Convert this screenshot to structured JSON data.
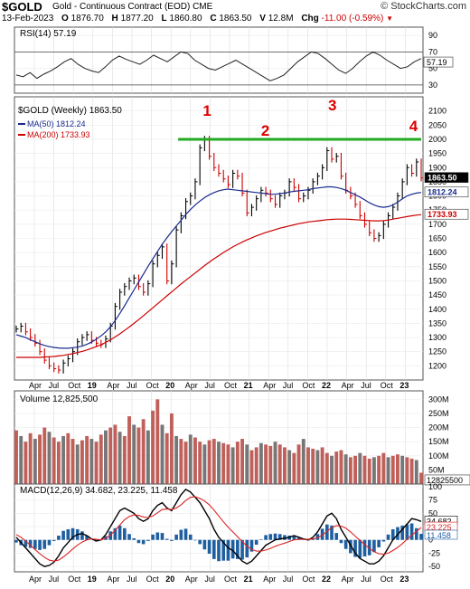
{
  "header": {
    "symbol": "$GOLD",
    "description": "Gold - Continuous Contract (EOD)",
    "exchange": "CME",
    "brand": "© StockCharts.com",
    "date": "13-Feb-2023",
    "open_label": "O",
    "open": "1876.70",
    "high_label": "H",
    "high": "1877.20",
    "low_label": "L",
    "low": "1860.80",
    "close_label": "C",
    "close": "1863.50",
    "volume_label": "V",
    "volume": "12.8M",
    "change_label": "Chg",
    "change": "-11.00 (-0.59%)",
    "change_icon": "down-triangle-icon"
  },
  "colors": {
    "up": "#000000",
    "down": "#cc0000",
    "ma50": "#1a2b8c",
    "ma200": "#cc0000",
    "rsi_fill": "#2e7d32",
    "resistance": "#22aa22",
    "annotation": "#dd0000",
    "vol_bar": "#c0605a",
    "hist": "#1f5fa0"
  },
  "x_axis_labels": [
    "Apr",
    "Jul",
    "Oct",
    "19",
    "Apr",
    "Jul",
    "Oct",
    "20",
    "Apr",
    "Jul",
    "Oct",
    "21",
    "Apr",
    "Jul",
    "Oct",
    "22",
    "Apr",
    "Jul",
    "Oct",
    "23"
  ],
  "chart_data": [
    {
      "type": "line",
      "panel": "RSI",
      "label": "RSI(14) 57.19",
      "ylim": [
        20,
        100
      ],
      "yticks": [
        30,
        50,
        70,
        90
      ],
      "reference_lines": [
        30,
        70
      ],
      "last_value": "57.19",
      "values": [
        42,
        40,
        45,
        38,
        43,
        47,
        52,
        58,
        62,
        55,
        50,
        47,
        45,
        52,
        60,
        65,
        61,
        58,
        55,
        60,
        66,
        62,
        58,
        64,
        70,
        68,
        60,
        55,
        50,
        48,
        52,
        56,
        60,
        55,
        50,
        45,
        40,
        35,
        38,
        42,
        50,
        58,
        64,
        70,
        68,
        62,
        55,
        48,
        44,
        50,
        58,
        65,
        70,
        66,
        60,
        55,
        50,
        52,
        58,
        62
      ]
    },
    {
      "type": "line",
      "panel": "price",
      "label": "$GOLD (Weekly) 1863.50",
      "ylim": [
        1150,
        2150
      ],
      "yticks": [
        1200,
        1250,
        1300,
        1350,
        1400,
        1450,
        1500,
        1550,
        1600,
        1650,
        1700,
        1750,
        1800,
        1850,
        1900,
        1950,
        2000,
        2050,
        2100
      ],
      "close_label": "1863.50",
      "series": [
        {
          "name": "$GOLD (Weekly) 1863.50",
          "values": [
            1330,
            1340,
            1320,
            1300,
            1280,
            1250,
            1220,
            1200,
            1190,
            1185,
            1210,
            1225,
            1250,
            1285,
            1300,
            1310,
            1290,
            1280,
            1275,
            1295,
            1340,
            1410,
            1460,
            1480,
            1500,
            1510,
            1480,
            1460,
            1490,
            1560,
            1590,
            1620,
            1500,
            1560,
            1680,
            1730,
            1780,
            1800,
            1850,
            1970,
            2000,
            1940,
            1900,
            1880,
            1860,
            1840,
            1880,
            1870,
            1810,
            1740,
            1760,
            1790,
            1820,
            1810,
            1790,
            1770,
            1800,
            1810,
            1850,
            1830,
            1790,
            1800,
            1820,
            1850,
            1870,
            1900,
            1960,
            1930,
            1940,
            1870,
            1820,
            1800,
            1770,
            1730,
            1700,
            1670,
            1650,
            1660,
            1700,
            1730,
            1760,
            1800,
            1850,
            1900,
            1880,
            1920,
            1863.5
          ]
        },
        {
          "name": "MA(50) 1812.24",
          "values": [
            1310,
            1305,
            1300,
            1292,
            1285,
            1278,
            1272,
            1268,
            1265,
            1263,
            1262,
            1262,
            1264,
            1266,
            1270,
            1276,
            1284,
            1294,
            1306,
            1320,
            1338,
            1360,
            1385,
            1412,
            1440,
            1468,
            1496,
            1524,
            1552,
            1578,
            1604,
            1630,
            1652,
            1674,
            1694,
            1714,
            1734,
            1752,
            1768,
            1782,
            1794,
            1804,
            1812,
            1818,
            1822,
            1824,
            1822,
            1820,
            1818,
            1816,
            1814,
            1812,
            1810,
            1808,
            1806,
            1806,
            1808,
            1810,
            1814,
            1816,
            1818,
            1820,
            1822,
            1826,
            1828,
            1830,
            1832,
            1832,
            1830,
            1826,
            1820,
            1812,
            1804,
            1796,
            1786,
            1776,
            1768,
            1762,
            1760,
            1762,
            1768,
            1778,
            1790,
            1800,
            1806,
            1810,
            1812.24
          ]
        },
        {
          "name": "MA(200) 1733.93",
          "values": [
            1230,
            1230,
            1230,
            1230,
            1230,
            1230,
            1231,
            1232,
            1233,
            1235,
            1237,
            1240,
            1243,
            1247,
            1251,
            1256,
            1262,
            1268,
            1275,
            1283,
            1292,
            1302,
            1313,
            1325,
            1337,
            1350,
            1363,
            1377,
            1391,
            1405,
            1419,
            1433,
            1447,
            1461,
            1475,
            1489,
            1502,
            1515,
            1528,
            1541,
            1554,
            1566,
            1578,
            1589,
            1600,
            1610,
            1620,
            1629,
            1637,
            1645,
            1652,
            1659,
            1665,
            1671,
            1676,
            1681,
            1686,
            1690,
            1694,
            1698,
            1702,
            1705,
            1708,
            1710,
            1712,
            1714,
            1716,
            1717,
            1718,
            1718,
            1718,
            1717,
            1716,
            1715,
            1714,
            1713,
            1712,
            1712,
            1713,
            1715,
            1718,
            1721,
            1724,
            1727,
            1730,
            1732,
            1733.93
          ]
        }
      ],
      "resistance": 2000,
      "annotations": [
        "1",
        "2",
        "3",
        "4"
      ]
    },
    {
      "type": "bar",
      "panel": "volume",
      "label": "Volume 12,825,500",
      "ylim": [
        0,
        330
      ],
      "yticks_labels": [
        "300M",
        "250M",
        "200M",
        "150M",
        "100M",
        "50M"
      ],
      "yticks": [
        300,
        250,
        200,
        150,
        100,
        50
      ],
      "last_label": "12825500",
      "values": [
        190,
        170,
        150,
        180,
        160,
        175,
        200,
        185,
        165,
        150,
        170,
        180,
        160,
        140,
        155,
        170,
        160,
        150,
        175,
        190,
        200,
        210,
        185,
        170,
        240,
        210,
        200,
        230,
        190,
        260,
        300,
        210,
        180,
        250,
        170,
        160,
        150,
        175,
        165,
        150,
        140,
        155,
        160,
        150,
        145,
        140,
        130,
        150,
        160,
        140,
        120,
        130,
        145,
        140,
        135,
        150,
        140,
        130,
        120,
        110,
        140,
        160,
        130,
        125,
        120,
        130,
        110,
        100,
        115,
        120,
        105,
        95,
        100,
        110,
        100,
        90,
        95,
        100,
        110,
        95,
        100,
        105,
        100,
        95,
        90,
        85,
        40
      ]
    },
    {
      "type": "line",
      "panel": "MACD",
      "label": "MACD(12,26,9) 34.682, 23.225, 11.458",
      "ylim": [
        -60,
        105
      ],
      "yticks": [
        100,
        75,
        50,
        25,
        0,
        -25,
        -50
      ],
      "last_labels": [
        "34.682",
        "23.225",
        "11.458"
      ],
      "series": [
        {
          "name": "MACD",
          "values": [
            5,
            -5,
            -15,
            -25,
            -35,
            -45,
            -50,
            -48,
            -42,
            -30,
            -15,
            -5,
            5,
            10,
            12,
            8,
            2,
            -2,
            0,
            10,
            25,
            40,
            55,
            60,
            55,
            50,
            40,
            35,
            40,
            55,
            65,
            70,
            60,
            55,
            70,
            85,
            95,
            90,
            80,
            70,
            55,
            40,
            20,
            5,
            -5,
            -15,
            -20,
            -30,
            -40,
            -45,
            -40,
            -30,
            -20,
            -10,
            -5,
            0,
            2,
            3,
            5,
            8,
            5,
            2,
            0,
            5,
            15,
            30,
            45,
            50,
            40,
            20,
            5,
            -10,
            -25,
            -35,
            -40,
            -45,
            -45,
            -40,
            -30,
            -15,
            0,
            10,
            20,
            30,
            40,
            38,
            34.682
          ]
        },
        {
          "name": "Signal",
          "values": [
            10,
            5,
            -2,
            -10,
            -18,
            -26,
            -33,
            -38,
            -40,
            -38,
            -32,
            -25,
            -17,
            -10,
            -4,
            0,
            2,
            1,
            0,
            3,
            9,
            18,
            28,
            38,
            44,
            47,
            46,
            43,
            42,
            45,
            51,
            57,
            58,
            57,
            60,
            66,
            74,
            80,
            81,
            78,
            73,
            66,
            56,
            45,
            34,
            24,
            15,
            6,
            -3,
            -12,
            -18,
            -21,
            -21,
            -19,
            -16,
            -12,
            -9,
            -6,
            -3,
            0,
            1,
            1,
            1,
            2,
            4,
            9,
            16,
            23,
            27,
            26,
            22,
            15,
            7,
            -1,
            -9,
            -16,
            -22,
            -26,
            -27,
            -25,
            -20,
            -14,
            -7,
            1,
            9,
            16,
            23.225
          ]
        }
      ],
      "histogram": [
        -5,
        -10,
        -13,
        -15,
        -17,
        -19,
        -17,
        -10,
        -2,
        8,
        17,
        20,
        22,
        20,
        16,
        8,
        0,
        -3,
        0,
        7,
        16,
        22,
        27,
        22,
        11,
        3,
        -6,
        -8,
        -2,
        10,
        14,
        13,
        2,
        -2,
        10,
        19,
        21,
        10,
        -1,
        -8,
        -18,
        -26,
        -36,
        -40,
        -39,
        -39,
        -35,
        -36,
        -37,
        -33,
        -22,
        -9,
        1,
        9,
        11,
        12,
        11,
        9,
        8,
        8,
        4,
        1,
        -1,
        3,
        11,
        21,
        29,
        27,
        13,
        -6,
        -17,
        -25,
        -32,
        -34,
        -31,
        -29,
        -23,
        -14,
        -3,
        10,
        20,
        24,
        27,
        29,
        31,
        22,
        11.458
      ]
    }
  ]
}
